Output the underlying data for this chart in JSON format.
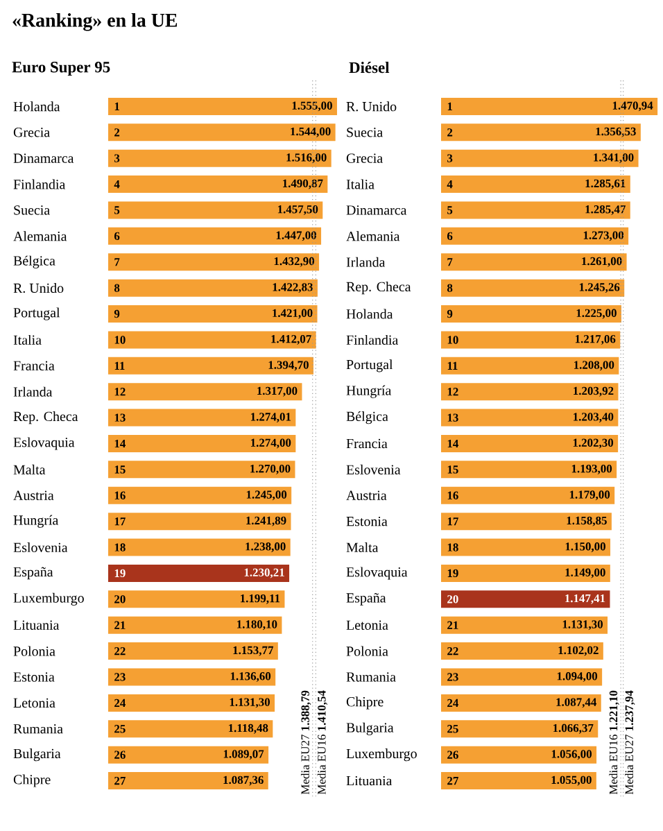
{
  "chart_data": [
    {
      "type": "bar",
      "orientation": "horizontal",
      "title": "«Ranking» en la UE",
      "subtitle": "Euro Super 95",
      "categories": [
        "Holanda",
        "Grecia",
        "Dinamarca",
        "Finlandia",
        "Suecia",
        "Alemania",
        "Bélgica",
        "R. Unido",
        "Portugal",
        "Italia",
        "Francia",
        "Irlanda",
        "Rep. Checa",
        "Eslovaquia",
        "Malta",
        "Austria",
        "Hungría",
        "Eslovenia",
        "España",
        "Luxemburgo",
        "Lituania",
        "Polonia",
        "Estonia",
        "Letonia",
        "Rumania",
        "Bulgaria",
        "Chipre"
      ],
      "values": [
        1555.0,
        1544.0,
        1516.0,
        1490.87,
        1457.5,
        1447.0,
        1432.9,
        1422.83,
        1421.0,
        1412.07,
        1394.7,
        1317.0,
        1274.01,
        1274.0,
        1270.0,
        1245.0,
        1241.89,
        1238.0,
        1230.21,
        1199.11,
        1180.1,
        1153.77,
        1136.6,
        1131.3,
        1118.48,
        1089.07,
        1087.36
      ],
      "value_labels": [
        "1.555,00",
        "1.544,00",
        "1.516,00",
        "1.490,87",
        "1.457,50",
        "1.447,00",
        "1.432,90",
        "1.422,83",
        "1.421,00",
        "1.412,07",
        "1.394,70",
        "1.317,00",
        "1.274,01",
        "1.274,00",
        "1.270,00",
        "1.245,00",
        "1.241,89",
        "1.238,00",
        "1.230,21",
        "1.199,11",
        "1.180,10",
        "1.153,77",
        "1.136,60",
        "1.131,30",
        "1.118,48",
        "1.089,07",
        "1.087,36"
      ],
      "colors": [
        "#f5a033",
        "#f5a033",
        "#f5a033",
        "#f5a033",
        "#f5a033",
        "#f5a033",
        "#f5a033",
        "#f5a033",
        "#f5a033",
        "#f5a033",
        "#f5a033",
        "#f5a033",
        "#f5a033",
        "#f5a033",
        "#f5a033",
        "#f5a033",
        "#f5a033",
        "#f5a033",
        "#a9341c",
        "#f5a033",
        "#f5a033",
        "#f5a033",
        "#f5a033",
        "#f5a033",
        "#f5a033",
        "#f5a033",
        "#f5a033"
      ],
      "annotations": [
        "1",
        "2",
        "3",
        "4",
        "5",
        "6",
        "7",
        "8",
        "9",
        "10",
        "11",
        "12",
        "13",
        "14",
        "15",
        "16",
        "17",
        "18",
        "19",
        "20",
        "21",
        "22",
        "23",
        "24",
        "25",
        "26",
        "27"
      ],
      "ref_lines": [
        {
          "axis": "x",
          "value": 1388.79,
          "label": "Media EU27 **1.388,79**",
          "color": "#999999",
          "line_style": "dotted"
        },
        {
          "axis": "x",
          "value": 1410.54,
          "label": "Media EU16 **1.410,54**",
          "color": "#999999",
          "line_style": "dotted"
        }
      ],
      "tick_labels": "y"
    },
    {
      "type": "bar",
      "orientation": "horizontal",
      "title": "Diésel",
      "categories": [
        "R. Unido",
        "Suecia",
        "Grecia",
        "Italia",
        "Dinamarca",
        "Alemania",
        "Irlanda",
        "Rep. Checa",
        "Holanda",
        "Finlandia",
        "Portugal",
        "Hungría",
        "Bélgica",
        "Francia",
        "Eslovenia",
        "Austria",
        "Estonia",
        "Malta",
        "Eslovaquia",
        "España",
        "Letonia",
        "Polonia",
        "Rumania",
        "Chipre",
        "Bulgaria",
        "Luxemburgo",
        "Lituania"
      ],
      "values": [
        1470.94,
        1356.53,
        1341.0,
        1285.61,
        1285.47,
        1273.0,
        1261.0,
        1245.26,
        1225.0,
        1217.06,
        1208.0,
        1203.92,
        1203.4,
        1202.3,
        1193.0,
        1179.0,
        1158.85,
        1150.0,
        1149.0,
        1147.41,
        1131.3,
        1102.02,
        1094.0,
        1087.44,
        1066.37,
        1056.0,
        1055.0
      ],
      "value_labels": [
        "1.470,94",
        "1.356,53",
        "1.341,00",
        "1.285,61",
        "1.285,47",
        "1.273,00",
        "1.261,00",
        "1.245,26",
        "1.225,00",
        "1.217,06",
        "1.208,00",
        "1.203,92",
        "1.203,40",
        "1.202,30",
        "1.193,00",
        "1.179,00",
        "1.158,85",
        "1.150,00",
        "1.149,00",
        "1.147,41",
        "1.131,30",
        "1.102,02",
        "1.094,00",
        "1.087,44",
        "1.066,37",
        "1.056,00",
        "1.055,00"
      ],
      "colors": [
        "#f5a033",
        "#f5a033",
        "#f5a033",
        "#f5a033",
        "#f5a033",
        "#f5a033",
        "#f5a033",
        "#f5a033",
        "#f5a033",
        "#f5a033",
        "#f5a033",
        "#f5a033",
        "#f5a033",
        "#f5a033",
        "#f5a033",
        "#f5a033",
        "#f5a033",
        "#f5a033",
        "#f5a033",
        "#a9341c",
        "#f5a033",
        "#f5a033",
        "#f5a033",
        "#f5a033",
        "#f5a033",
        "#f5a033",
        "#f5a033"
      ],
      "annotations": [
        "1",
        "2",
        "3",
        "4",
        "5",
        "6",
        "7",
        "8",
        "9",
        "10",
        "11",
        "12",
        "13",
        "14",
        "15",
        "16",
        "17",
        "18",
        "19",
        "20",
        "21",
        "22",
        "23",
        "24",
        "25",
        "26",
        "27"
      ],
      "ref_lines": [
        {
          "axis": "x",
          "value": 1221.1,
          "label": "Media EU16 **1.221,10**",
          "color": "#999999",
          "line_style": "dotted"
        },
        {
          "axis": "x",
          "value": 1237.94,
          "label": "Media EU27 **1.237,94**",
          "color": "#999999",
          "line_style": "dotted"
        }
      ],
      "tick_labels": "y"
    }
  ]
}
